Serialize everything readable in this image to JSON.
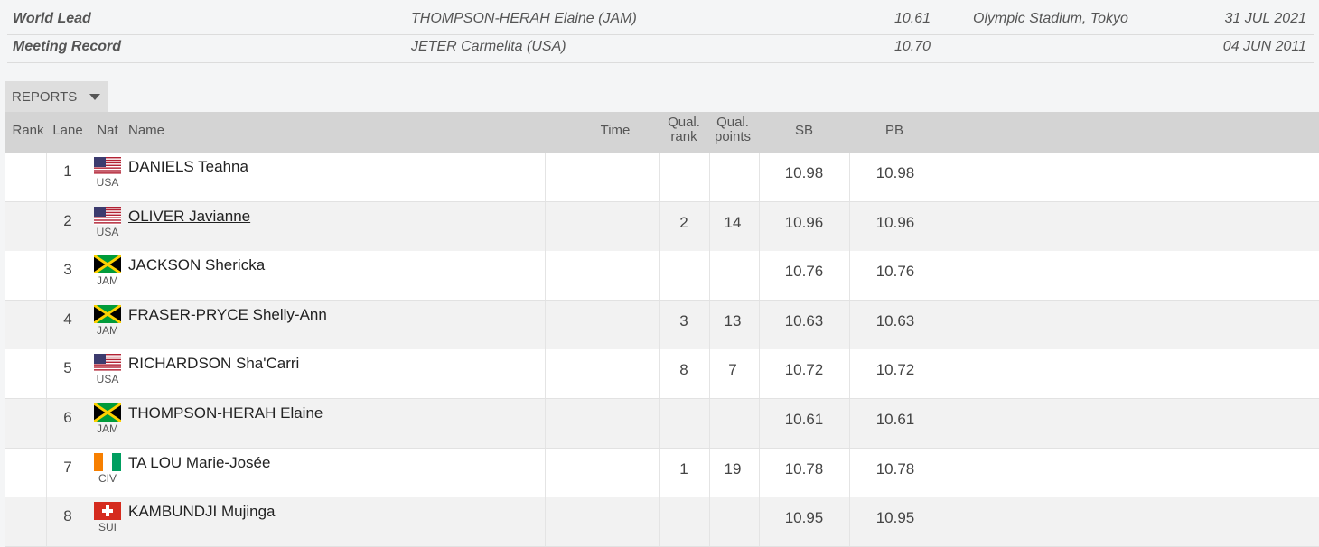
{
  "records": [
    {
      "label": "World Lead",
      "athlete": "THOMPSON-HERAH Elaine (JAM)",
      "mark": "10.61",
      "venue": "Olympic Stadium, Tokyo",
      "date": "31 JUL 2021"
    },
    {
      "label": "Meeting Record",
      "athlete": "JETER Carmelita (USA)",
      "mark": "10.70",
      "date": "04 JUN 2011"
    }
  ],
  "reports": "REPORTS",
  "table": {
    "headers": {
      "rank": "Rank",
      "lane": "Lane",
      "nat": "Nat",
      "name": "Name",
      "time": "Time",
      "qual_rank": "Qual. rank",
      "qual_points": "Qual. points",
      "sb": "SB",
      "pb": "PB"
    },
    "rows": [
      {
        "lane": "1",
        "nat": "USA",
        "name": "DANIELS Teahna",
        "sb": "10.98",
        "pb": "10.98"
      },
      {
        "lane": "2",
        "nat": "USA",
        "name": "OLIVER Javianne",
        "qual_rank": "2",
        "qual_points": "14",
        "sb": "10.96",
        "pb": "10.96"
      },
      {
        "lane": "3",
        "nat": "JAM",
        "name": "JACKSON Shericka",
        "sb": "10.76",
        "pb": "10.76"
      },
      {
        "lane": "4",
        "nat": "JAM",
        "name": "FRASER-PRYCE Shelly-Ann",
        "qual_rank": "3",
        "qual_points": "13",
        "sb": "10.63",
        "pb": "10.63"
      },
      {
        "lane": "5",
        "nat": "USA",
        "name": "RICHARDSON Sha'Carri",
        "qual_rank": "8",
        "qual_points": "7",
        "sb": "10.72",
        "pb": "10.72"
      },
      {
        "lane": "6",
        "nat": "JAM",
        "name": "THOMPSON-HERAH Elaine",
        "sb": "10.61",
        "pb": "10.61"
      },
      {
        "lane": "7",
        "nat": "CIV",
        "name": "TA LOU Marie-Josée",
        "qual_rank": "1",
        "qual_points": "19",
        "sb": "10.78",
        "pb": "10.78"
      },
      {
        "lane": "8",
        "nat": "SUI",
        "name": "KAMBUNDJI Mujinga",
        "sb": "10.95",
        "pb": "10.95"
      }
    ]
  }
}
